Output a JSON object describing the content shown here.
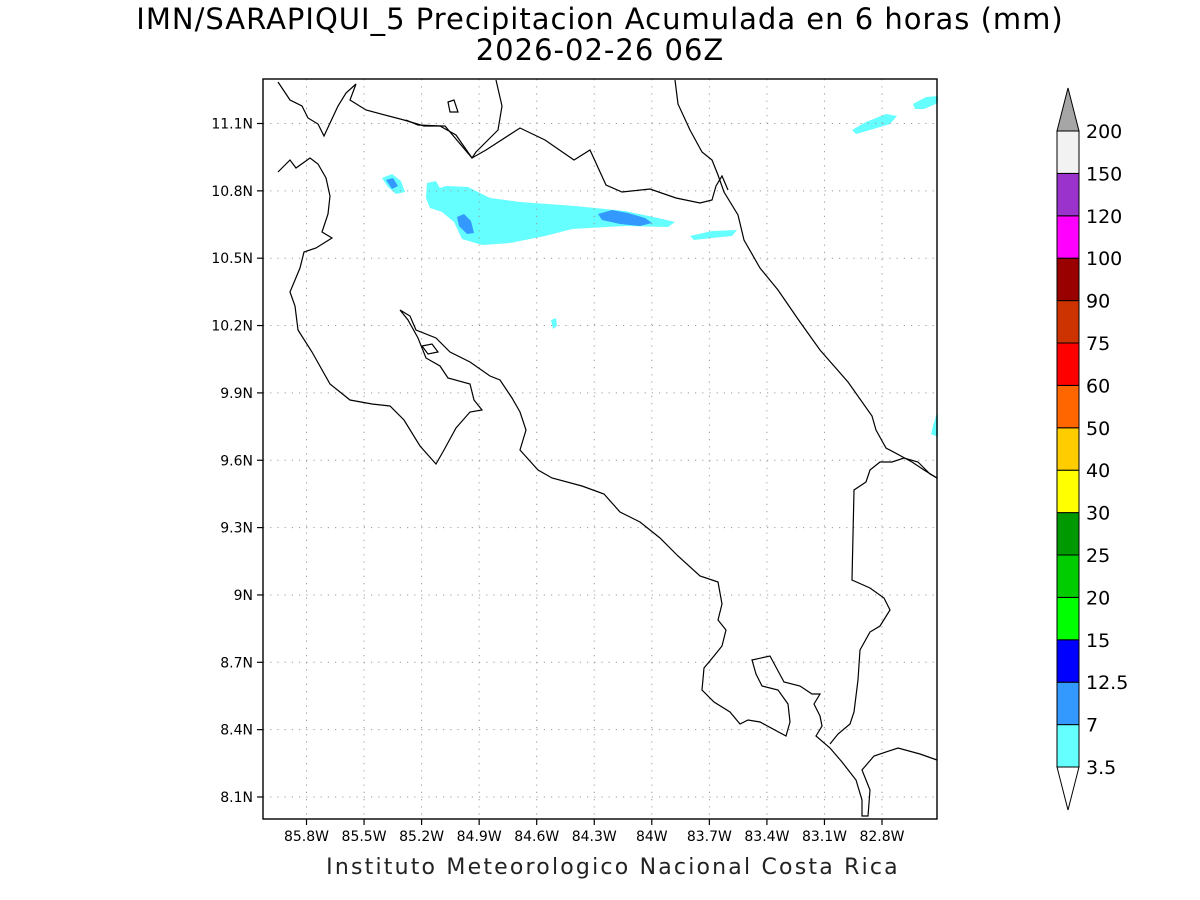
{
  "title_line1": "IMN/SARAPIQUI_5 Precipitacion Acumulada en 6 horas (mm)",
  "title_line2": "2026-02-26 06Z",
  "footer": "Instituto Meteorologico Nacional Costa Rica",
  "map": {
    "lat_labels": [
      "11.1N",
      "10.8N",
      "10.5N",
      "10.2N",
      "9.9N",
      "9.6N",
      "9.3N",
      "9N",
      "8.7N",
      "8.4N",
      "8.1N"
    ],
    "lon_labels": [
      "85.8W",
      "85.5W",
      "85.2W",
      "84.9W",
      "84.6W",
      "84.3W",
      "84W",
      "83.7W",
      "83.4W",
      "83.1W",
      "82.8W"
    ]
  },
  "colorbar": {
    "labels": [
      "3.5",
      "7",
      "12.5",
      "15",
      "20",
      "25",
      "30",
      "40",
      "50",
      "60",
      "75",
      "90",
      "100",
      "120",
      "150",
      "200"
    ],
    "colors": [
      "#66ffff",
      "#3399ff",
      "#0000ff",
      "#00ff00",
      "#00cc00",
      "#009900",
      "#ffff00",
      "#ffcc00",
      "#ff6600",
      "#ff0000",
      "#cc3300",
      "#990000",
      "#ff00ff",
      "#9933cc",
      "#f2f2f2"
    ],
    "low_arrow_color": "#ffffff",
    "high_arrow_color": "#a6a6a6"
  },
  "precip_colors": {
    "light": "#66ffff",
    "medium": "#3399ff"
  }
}
